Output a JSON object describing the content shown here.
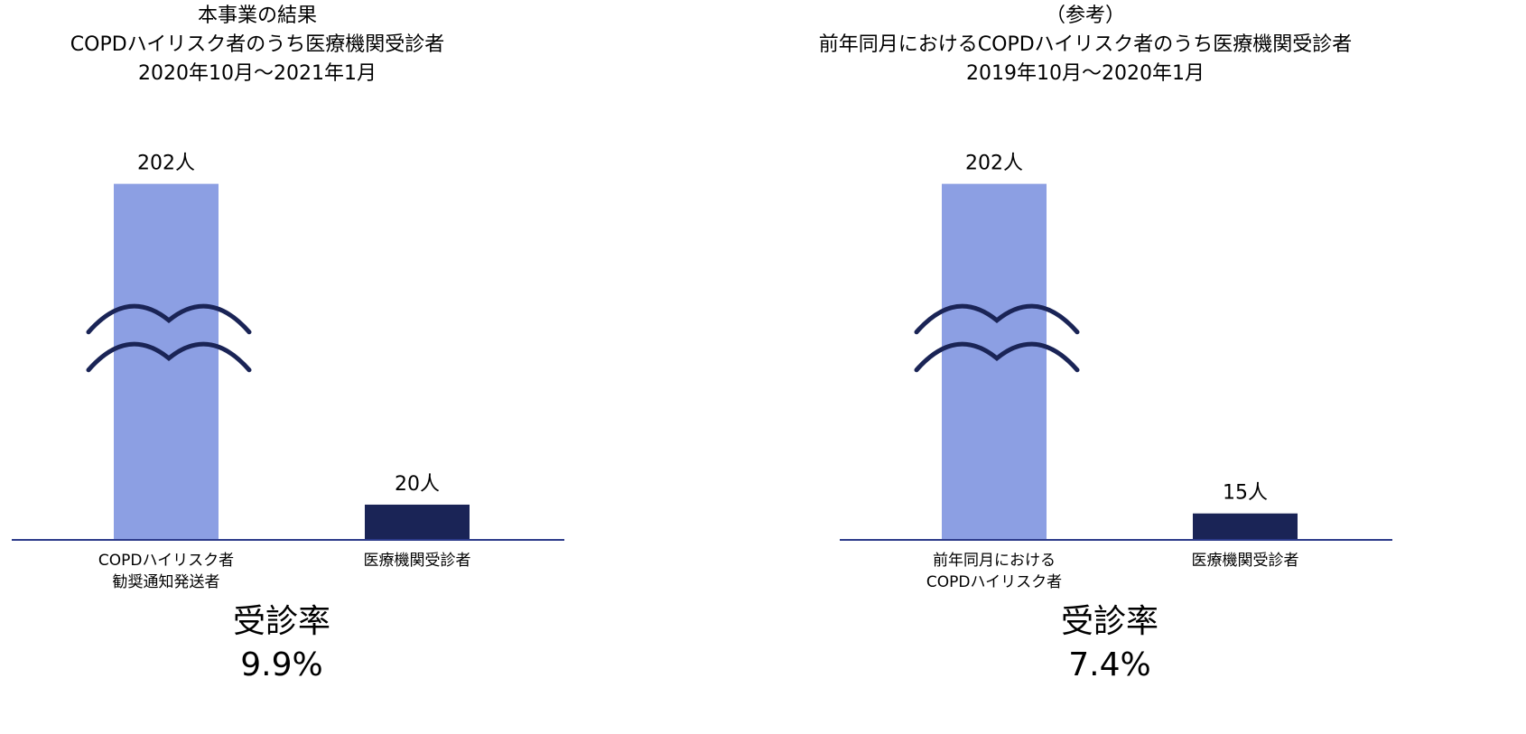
{
  "chart_data": [
    {
      "type": "bar",
      "title": "本事業の結果\nCOPDハイリスク者のうち医療機関受診者\n2020年10月～2021年1月",
      "categories": [
        "COPDハイリスク者\n勧奨通知発送者",
        "医療機関受診者"
      ],
      "values": [
        202,
        20
      ],
      "value_labels": [
        "202人",
        "20人"
      ],
      "colors": [
        "#8c9fe3",
        "#1a2456"
      ],
      "ylim": [
        0,
        210
      ],
      "axis_break": true,
      "annotation": [
        "受診率",
        "9.9%"
      ]
    },
    {
      "type": "bar",
      "title": "（参考）\n前年同月におけるCOPDハイリスク者のうち医療機関受診者\n2019年10月～2020年1月",
      "categories": [
        "前年同月における\nCOPDハイリスク者",
        "医療機関受診者"
      ],
      "values": [
        202,
        15
      ],
      "value_labels": [
        "202人",
        "15人"
      ],
      "colors": [
        "#8c9fe3",
        "#1a2456"
      ],
      "ylim": [
        0,
        210
      ],
      "axis_break": true,
      "annotation": [
        "受診率",
        "7.4%"
      ]
    }
  ]
}
